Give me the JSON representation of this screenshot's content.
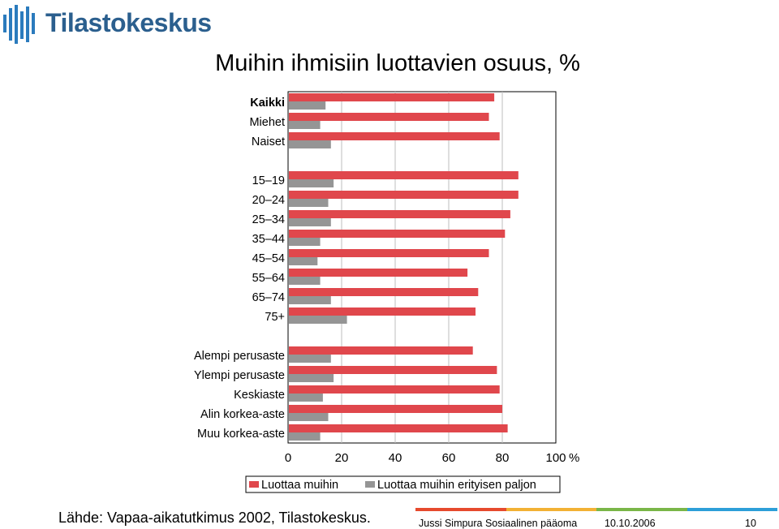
{
  "header": {
    "logo_text": "Tilastokeskus"
  },
  "chart_data": {
    "type": "bar",
    "orientation": "horizontal",
    "title": "Muihin ihmisiin luottavien osuus, %",
    "groups": [
      [
        "Kaikki",
        "Miehet",
        "Naiset"
      ],
      [
        "15–19",
        "20–24",
        "25–34",
        "35–44",
        "45–54",
        "55–64",
        "65–74",
        "75+"
      ],
      [
        "Alempi perusaste",
        "Ylempi perusaste",
        "Keskiaste",
        "Alin korkea-aste",
        "Muu korkea-aste"
      ]
    ],
    "categories": [
      "Kaikki",
      "Miehet",
      "Naiset",
      "15–19",
      "20–24",
      "25–34",
      "35–44",
      "45–54",
      "55–64",
      "65–74",
      "75+",
      "Alempi perusaste",
      "Ylempi perusaste",
      "Keskiaste",
      "Alin korkea-aste",
      "Muu korkea-aste"
    ],
    "bold_categories": [
      "Kaikki"
    ],
    "series": [
      {
        "name": "Luottaa muihin",
        "color": "#e0474c",
        "values": [
          77,
          75,
          79,
          86,
          86,
          83,
          81,
          75,
          67,
          71,
          70,
          69,
          78,
          79,
          80,
          82
        ]
      },
      {
        "name": "Luottaa muihin erityisen paljon",
        "color": "#959595",
        "values": [
          14,
          12,
          16,
          17,
          15,
          16,
          12,
          11,
          12,
          16,
          22,
          16,
          17,
          13,
          15,
          12
        ]
      }
    ],
    "xlim": [
      0,
      100
    ],
    "xticks": [
      "0",
      "20",
      "40",
      "60",
      "80",
      "100"
    ],
    "unit": "%",
    "grid": true,
    "legend_position": "bottom"
  },
  "footer": {
    "source": "Lähde: Vapaa-aikatutkimus 2002, Tilastokeskus.",
    "author": "Jussi Simpura Sosiaalinen pääoma",
    "date": "10.10.2006",
    "page": "10",
    "colors": [
      "#e64a2e",
      "#f2b134",
      "#7ab648",
      "#2d9fd8"
    ]
  }
}
